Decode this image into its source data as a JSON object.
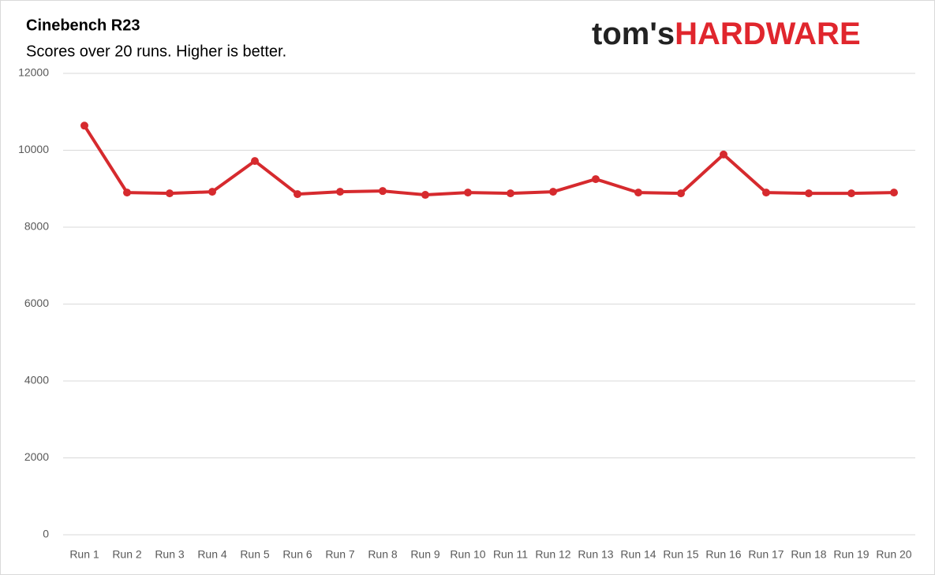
{
  "chart_data": {
    "type": "line",
    "title": "Cinebench R23",
    "subtitle": "Scores over 20 runs. Higher is better.",
    "categories": [
      "Run 1",
      "Run 2",
      "Run 3",
      "Run 4",
      "Run 5",
      "Run 6",
      "Run 7",
      "Run 8",
      "Run 9",
      "Run 10",
      "Run 11",
      "Run 12",
      "Run 13",
      "Run 14",
      "Run 15",
      "Run 16",
      "Run 17",
      "Run 18",
      "Run 19",
      "Run 20"
    ],
    "values": [
      10640,
      8900,
      8880,
      8920,
      9720,
      8860,
      8920,
      8940,
      8840,
      8900,
      8880,
      8920,
      9250,
      8900,
      8880,
      9890,
      8900,
      8880,
      8880,
      8900
    ],
    "color": "#d62a2e",
    "ylim": [
      0,
      12000
    ],
    "yticks": [
      0,
      2000,
      4000,
      6000,
      8000,
      10000,
      12000
    ],
    "grid": true
  },
  "logo": {
    "prefix": "tom's",
    "brand": "HARDWARE"
  }
}
